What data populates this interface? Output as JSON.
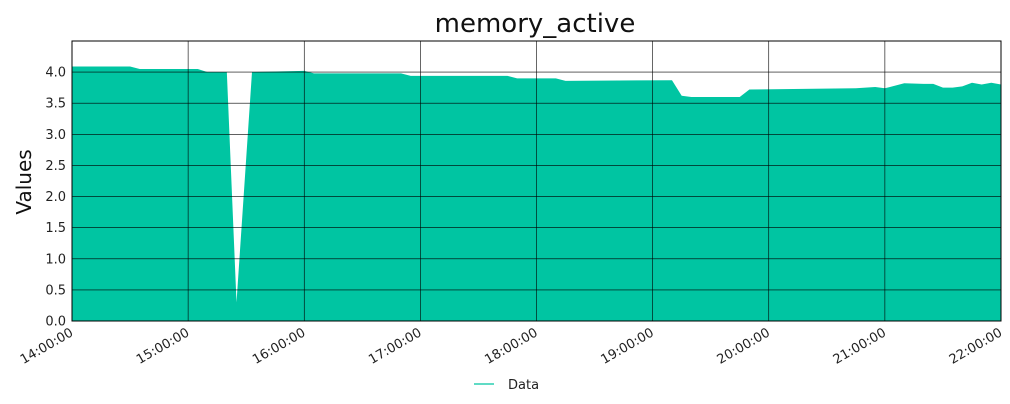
{
  "chart_data": {
    "type": "area",
    "title": "memory_active",
    "xlabel": "",
    "ylabel": "Values",
    "x_ticks": [
      "14:00:00",
      "15:00:00",
      "16:00:00",
      "17:00:00",
      "18:00:00",
      "19:00:00",
      "20:00:00",
      "21:00:00",
      "22:00:00"
    ],
    "y_ticks": [
      "0.0",
      "0.5",
      "1.0",
      "1.5",
      "2.0",
      "2.5",
      "3.0",
      "3.5",
      "4.0"
    ],
    "xlim": [
      "14:00:00",
      "22:00:00"
    ],
    "ylim": [
      0,
      4.5
    ],
    "grid": true,
    "legend_position": "bottom-center",
    "color": "#00c5a2",
    "series": [
      {
        "name": "Data",
        "x": [
          "14:00:00",
          "14:30:00",
          "14:35:00",
          "15:05:00",
          "15:10:00",
          "15:15:00",
          "15:20:00",
          "15:25:00",
          "15:33:00",
          "16:00:00",
          "16:05:00",
          "16:50:00",
          "16:55:00",
          "17:45:00",
          "17:50:00",
          "18:10:00",
          "18:15:00",
          "19:10:00",
          "19:15:00",
          "19:20:00",
          "19:45:00",
          "19:50:00",
          "20:45:00",
          "20:55:00",
          "21:00:00",
          "21:10:00",
          "21:20:00",
          "21:25:00",
          "21:30:00",
          "21:35:00",
          "21:40:00",
          "21:45:00",
          "21:50:00",
          "21:55:00",
          "22:00:00"
        ],
        "y": [
          4.09,
          4.09,
          4.05,
          4.05,
          4.0,
          4.0,
          4.0,
          0.3,
          4.0,
          4.02,
          3.98,
          3.98,
          3.94,
          3.94,
          3.9,
          3.9,
          3.86,
          3.87,
          3.62,
          3.6,
          3.6,
          3.72,
          3.74,
          3.76,
          3.74,
          3.82,
          3.81,
          3.81,
          3.75,
          3.75,
          3.77,
          3.83,
          3.8,
          3.83,
          3.8
        ]
      }
    ]
  }
}
